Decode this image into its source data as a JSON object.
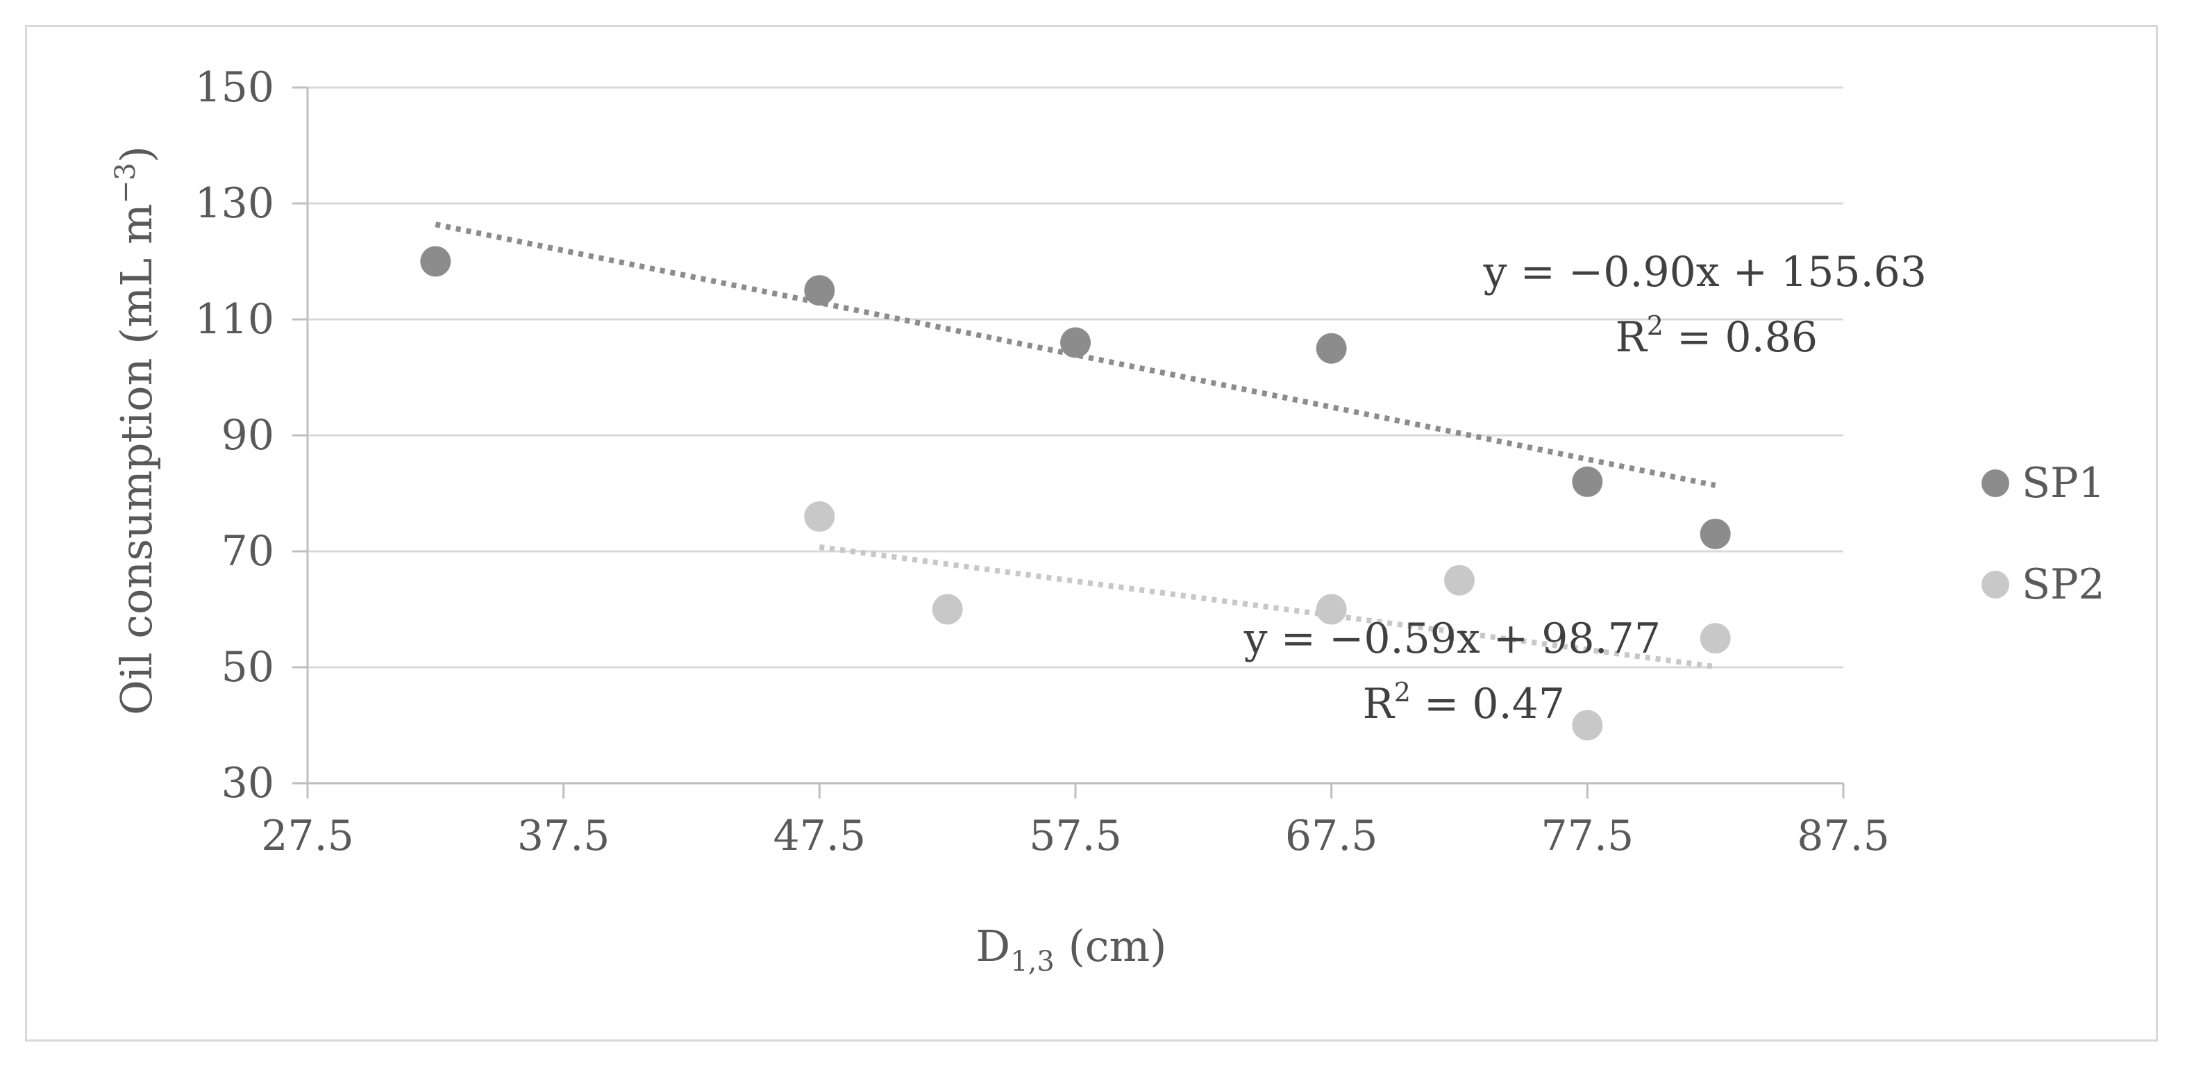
{
  "chart_data": {
    "type": "scatter",
    "title": "",
    "xlabel": {
      "main": "D",
      "sub": "1,3",
      "unit": " (cm)"
    },
    "ylabel": {
      "main": "Oil consumption (mL m",
      "sup": "−3",
      "close": ")"
    },
    "xlim": [
      27.5,
      87.5
    ],
    "ylim": [
      30,
      150
    ],
    "xticks": [
      27.5,
      37.5,
      47.5,
      57.5,
      67.5,
      77.5,
      87.5
    ],
    "xtick_labels": [
      "27.5",
      "37.5",
      "47.5",
      "57.5",
      "67.5",
      "77.5",
      "87.5"
    ],
    "yticks": [
      30,
      50,
      70,
      90,
      110,
      130,
      150
    ],
    "ytick_labels": [
      "30",
      "50",
      "70",
      "90",
      "110",
      "130",
      "150"
    ],
    "grid": "horizontal",
    "legend_position": "right",
    "series": [
      {
        "name": "SP1",
        "color": "#8c8c8c",
        "x": [
          32.5,
          47.5,
          57.5,
          67.5,
          77.5,
          82.5
        ],
        "y": [
          120,
          115,
          106,
          105,
          82,
          73
        ],
        "trendline": {
          "slope": -0.9,
          "intercept": 155.63,
          "x_range": [
            32.5,
            82.5
          ]
        },
        "equation": "y = −0.90x + 155.63",
        "r2": {
          "prefix": "R",
          "sup": "2",
          "rest": " = 0.86"
        }
      },
      {
        "name": "SP2",
        "color": "#c8c8c8",
        "x": [
          47.5,
          52.5,
          67.5,
          72.5,
          77.5,
          82.5
        ],
        "y": [
          76,
          60,
          60,
          65,
          40,
          55
        ],
        "trendline": {
          "slope": -0.59,
          "intercept": 98.77,
          "x_range": [
            47.5,
            82.5
          ]
        },
        "equation": "y = −0.59x + 98.77",
        "r2": {
          "prefix": "R",
          "sup": "2",
          "rest": " = 0.47"
        }
      }
    ]
  }
}
